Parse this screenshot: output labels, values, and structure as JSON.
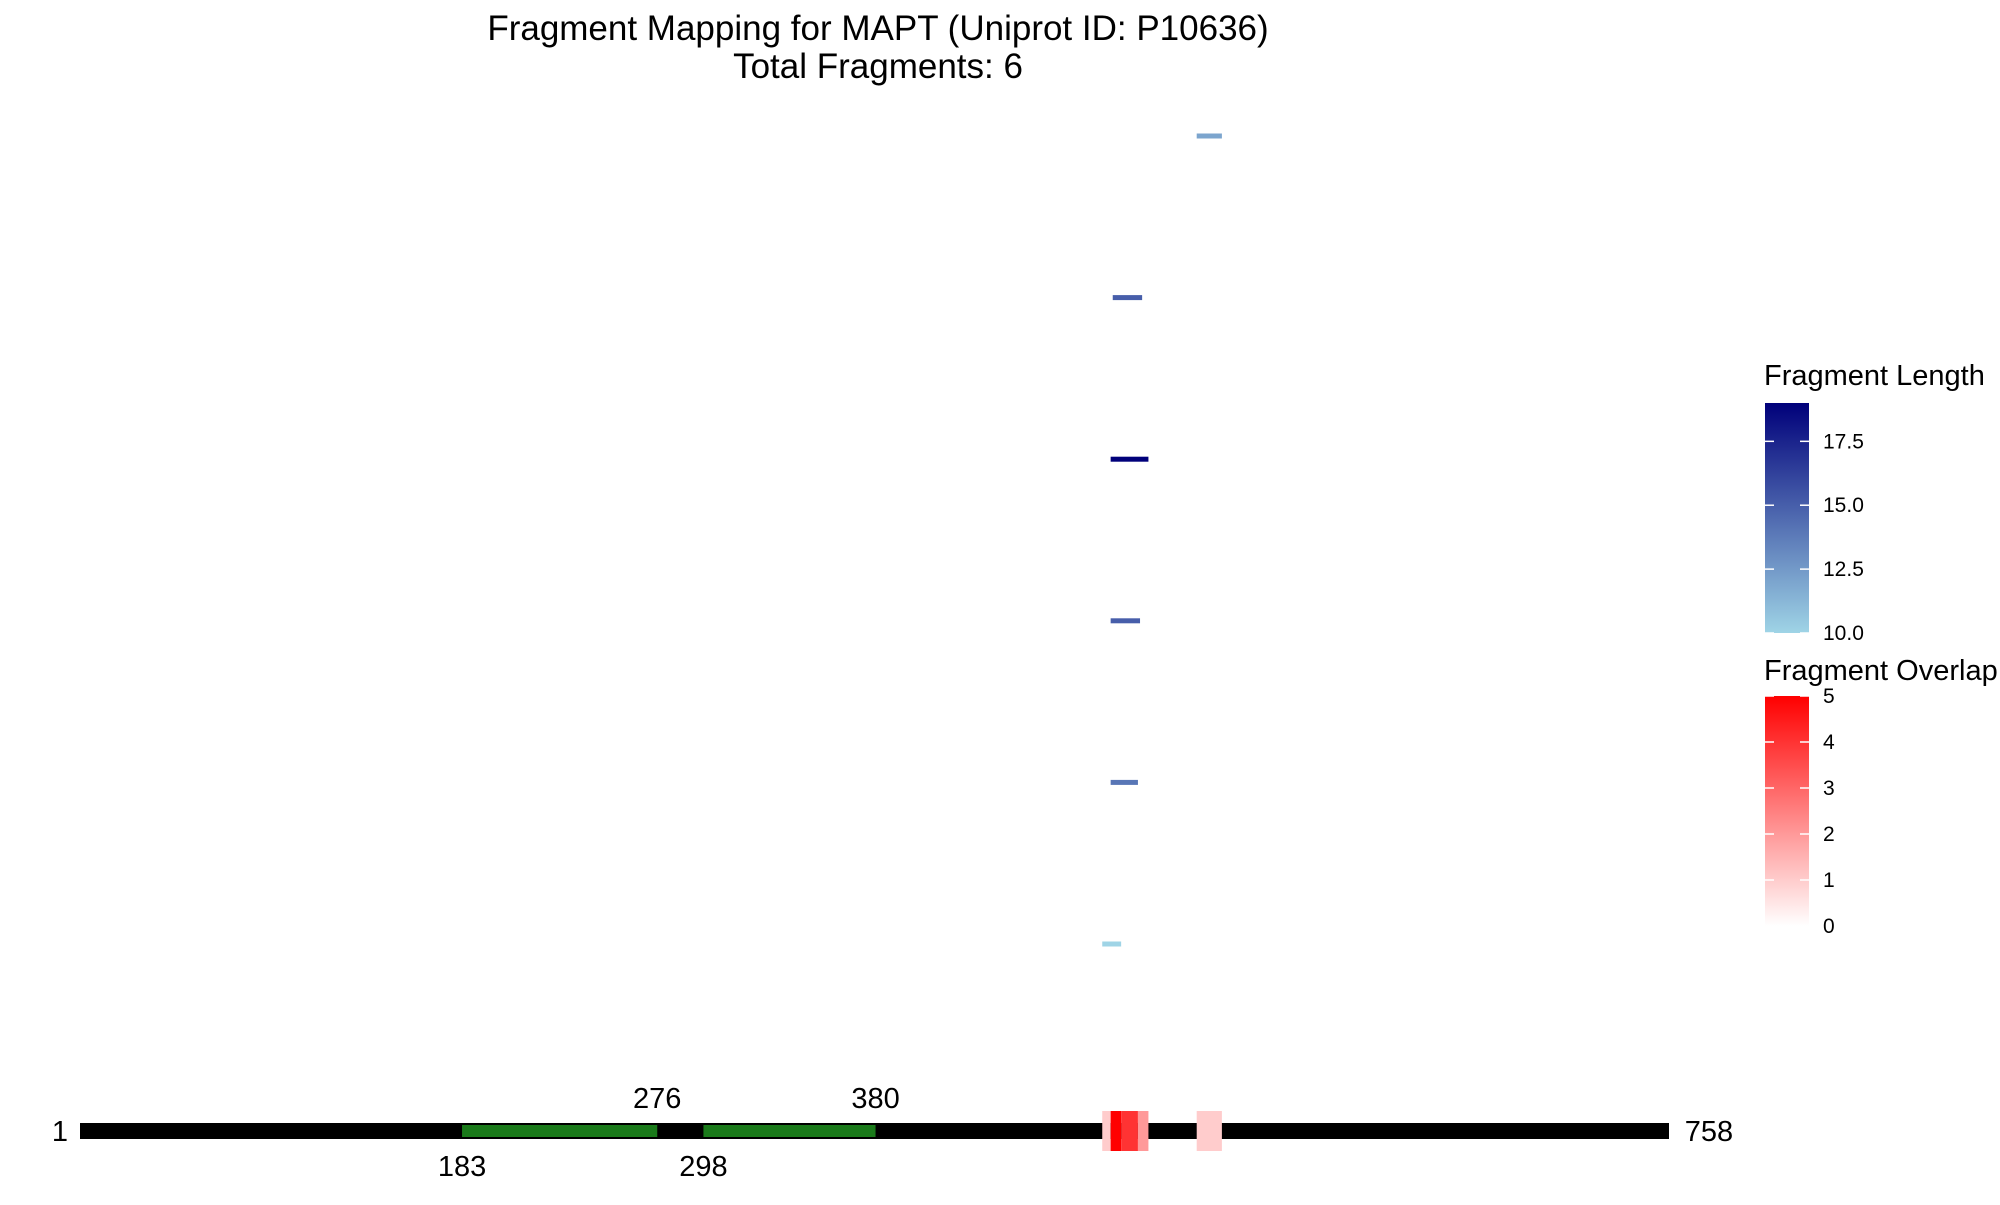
{
  "chart_data": {
    "type": "fragment-map",
    "title": "Fragment Mapping for MAPT (Uniprot ID: P10636)",
    "subtitle": "Total Fragments: 6",
    "protein": {
      "start": 1,
      "end": 758,
      "start_label": "1",
      "end_label": "758",
      "color": "#000000"
    },
    "domains": [
      {
        "start": 183,
        "end": 276,
        "start_label": "183",
        "end_label": "276",
        "color": "#1a7a1a"
      },
      {
        "start": 298,
        "end": 380,
        "start_label": "298",
        "end_label": "380",
        "color": "#1a7a1a"
      }
    ],
    "fragments": [
      {
        "start": 533,
        "end": 545,
        "length": 12
      },
      {
        "start": 493,
        "end": 507,
        "length": 15
      },
      {
        "start": 492,
        "end": 510,
        "length": 19
      },
      {
        "start": 492,
        "end": 506,
        "length": 15
      },
      {
        "start": 492,
        "end": 505,
        "length": 14
      },
      {
        "start": 488,
        "end": 497,
        "length": 10
      }
    ],
    "overlap_bins": [
      {
        "start": 488,
        "end": 492,
        "overlap": 1
      },
      {
        "start": 492,
        "end": 497,
        "overlap": 5
      },
      {
        "start": 497,
        "end": 505,
        "overlap": 4
      },
      {
        "start": 505,
        "end": 510,
        "overlap": 2
      },
      {
        "start": 533,
        "end": 545,
        "overlap": 1
      }
    ],
    "legends": {
      "length": {
        "title": "Fragment Length",
        "min": 10,
        "max": 19,
        "ticks": [
          10.0,
          12.5,
          15.0,
          17.5
        ],
        "tick_labels": [
          "10.0",
          "12.5",
          "15.0",
          "17.5"
        ],
        "color_low": "#9fd4e6",
        "color_high": "#00007a"
      },
      "overlap": {
        "title": "Fragment Overlap",
        "min": 0,
        "max": 5,
        "ticks": [
          0,
          1,
          2,
          3,
          4,
          5
        ],
        "tick_labels": [
          "0",
          "1",
          "2",
          "3",
          "4",
          "5"
        ],
        "color_low": "#ffffff",
        "color_high": "#ff0000"
      }
    }
  }
}
